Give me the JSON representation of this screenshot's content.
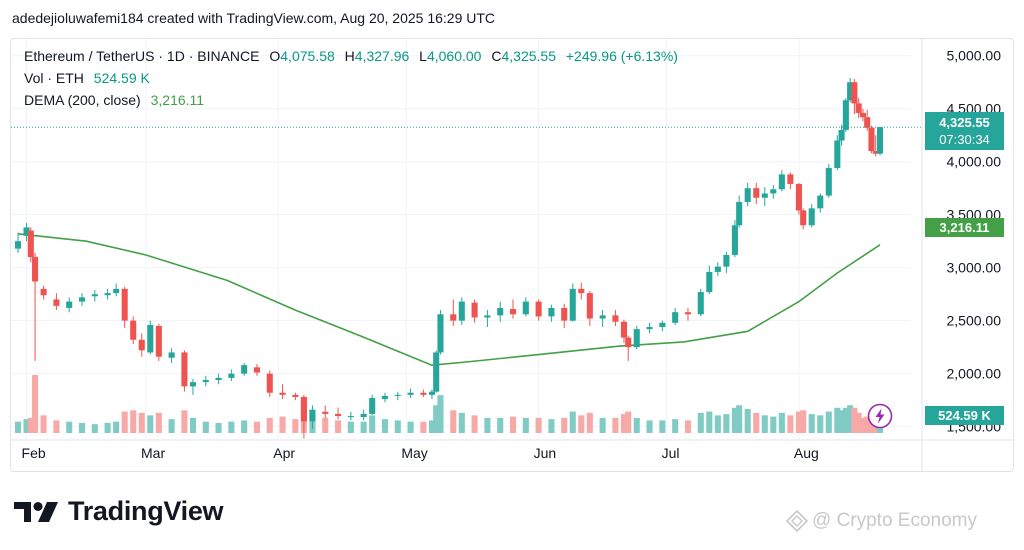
{
  "header": {
    "attribution": "adedejioluwafemi184 created with TradingView.com, Aug 20, 2025 16:29 UTC"
  },
  "legend": {
    "symbol": "Ethereum / TetherUS · 1D · BINANCE",
    "open_label": "O",
    "open": "4,075.58",
    "high_label": "H",
    "high": "4,327.96",
    "low_label": "L",
    "low": "4,060.00",
    "close_label": "C",
    "close": "4,325.55",
    "change": "+249.96 (+6.13%)",
    "vol_label": "Vol · ETH",
    "vol": "524.59 K",
    "ma_label": "DEMA (200, close)",
    "ma": "3,216.11"
  },
  "badges": {
    "price": "4,325.55",
    "countdown": "07:30:34",
    "ma": "3,216.11",
    "volume": "524.59 K"
  },
  "brand": {
    "wordmark": "TradingView",
    "watermark": "@ Crypto Economy"
  },
  "colors": {
    "up": "#26a69a",
    "down": "#ef5350",
    "ma": "#43a047",
    "vol_up": "#80cbc4",
    "vol_down": "#f7a9a7",
    "text": "#131722",
    "grid": "#f0f3fa"
  },
  "icons": {
    "flash": "lightning-icon",
    "logo": "tradingview-logo-icon",
    "watermark": "diamond-icon"
  },
  "chart_data": {
    "type": "candlestick",
    "title": "Ethereum / TetherUS · 1D · BINANCE",
    "y_ticks": [
      1500,
      2000,
      2500,
      3000,
      3500,
      4000,
      4500,
      5000
    ],
    "y_tick_labels": [
      "1,500.00",
      "2,000.00",
      "2,500.00",
      "3,000.00",
      "3,500.00",
      "4,000.00",
      "4,500.00",
      "5,000.00"
    ],
    "ylim": [
      1440,
      5120
    ],
    "x_range": [
      "2025-01-30",
      "2025-08-20"
    ],
    "x_ticks": [
      {
        "date": "2025-02-01",
        "label": "Feb"
      },
      {
        "date": "2025-03-01",
        "label": "Mar"
      },
      {
        "date": "2025-04-01",
        "label": "Apr"
      },
      {
        "date": "2025-05-01",
        "label": "May"
      },
      {
        "date": "2025-06-01",
        "label": "Jun"
      },
      {
        "date": "2025-07-01",
        "label": "Jul"
      },
      {
        "date": "2025-08-01",
        "label": "Aug"
      }
    ],
    "candles": [
      {
        "d": "2025-01-30",
        "o": 3180,
        "h": 3330,
        "l": 3140,
        "c": 3250
      },
      {
        "d": "2025-02-01",
        "o": 3300,
        "h": 3420,
        "l": 3250,
        "c": 3380
      },
      {
        "d": "2025-02-02",
        "o": 3350,
        "h": 3380,
        "l": 3050,
        "c": 3100
      },
      {
        "d": "2025-02-03",
        "o": 3100,
        "h": 3140,
        "l": 2120,
        "c": 2870
      },
      {
        "d": "2025-02-05",
        "o": 2800,
        "h": 2830,
        "l": 2700,
        "c": 2740
      },
      {
        "d": "2025-02-08",
        "o": 2700,
        "h": 2760,
        "l": 2600,
        "c": 2640
      },
      {
        "d": "2025-02-11",
        "o": 2620,
        "h": 2720,
        "l": 2580,
        "c": 2680
      },
      {
        "d": "2025-02-14",
        "o": 2680,
        "h": 2760,
        "l": 2640,
        "c": 2720
      },
      {
        "d": "2025-02-17",
        "o": 2730,
        "h": 2790,
        "l": 2680,
        "c": 2750
      },
      {
        "d": "2025-02-20",
        "o": 2740,
        "h": 2800,
        "l": 2700,
        "c": 2760
      },
      {
        "d": "2025-02-22",
        "o": 2760,
        "h": 2850,
        "l": 2730,
        "c": 2800
      },
      {
        "d": "2025-02-24",
        "o": 2800,
        "h": 2820,
        "l": 2430,
        "c": 2500
      },
      {
        "d": "2025-02-26",
        "o": 2500,
        "h": 2540,
        "l": 2280,
        "c": 2320
      },
      {
        "d": "2025-02-28",
        "o": 2320,
        "h": 2380,
        "l": 2160,
        "c": 2220
      },
      {
        "d": "2025-03-02",
        "o": 2200,
        "h": 2500,
        "l": 2180,
        "c": 2460
      },
      {
        "d": "2025-03-04",
        "o": 2450,
        "h": 2470,
        "l": 2120,
        "c": 2160
      },
      {
        "d": "2025-03-07",
        "o": 2150,
        "h": 2240,
        "l": 2100,
        "c": 2200
      },
      {
        "d": "2025-03-10",
        "o": 2200,
        "h": 2220,
        "l": 1830,
        "c": 1880
      },
      {
        "d": "2025-03-12",
        "o": 1880,
        "h": 1950,
        "l": 1800,
        "c": 1920
      },
      {
        "d": "2025-03-15",
        "o": 1920,
        "h": 1980,
        "l": 1880,
        "c": 1940
      },
      {
        "d": "2025-03-18",
        "o": 1940,
        "h": 2000,
        "l": 1900,
        "c": 1960
      },
      {
        "d": "2025-03-21",
        "o": 1960,
        "h": 2040,
        "l": 1930,
        "c": 2000
      },
      {
        "d": "2025-03-24",
        "o": 2000,
        "h": 2100,
        "l": 1980,
        "c": 2080
      },
      {
        "d": "2025-03-27",
        "o": 2060,
        "h": 2090,
        "l": 1980,
        "c": 2010
      },
      {
        "d": "2025-03-30",
        "o": 2000,
        "h": 2030,
        "l": 1780,
        "c": 1820
      },
      {
        "d": "2025-04-02",
        "o": 1820,
        "h": 1900,
        "l": 1760,
        "c": 1800
      },
      {
        "d": "2025-04-05",
        "o": 1800,
        "h": 1820,
        "l": 1750,
        "c": 1780
      },
      {
        "d": "2025-04-07",
        "o": 1780,
        "h": 1800,
        "l": 1390,
        "c": 1550
      },
      {
        "d": "2025-04-09",
        "o": 1550,
        "h": 1700,
        "l": 1480,
        "c": 1660
      },
      {
        "d": "2025-04-12",
        "o": 1640,
        "h": 1700,
        "l": 1580,
        "c": 1620
      },
      {
        "d": "2025-04-15",
        "o": 1620,
        "h": 1680,
        "l": 1570,
        "c": 1600
      },
      {
        "d": "2025-04-18",
        "o": 1590,
        "h": 1640,
        "l": 1560,
        "c": 1600
      },
      {
        "d": "2025-04-21",
        "o": 1590,
        "h": 1660,
        "l": 1560,
        "c": 1620
      },
      {
        "d": "2025-04-23",
        "o": 1620,
        "h": 1800,
        "l": 1610,
        "c": 1770
      },
      {
        "d": "2025-04-26",
        "o": 1760,
        "h": 1820,
        "l": 1730,
        "c": 1790
      },
      {
        "d": "2025-04-29",
        "o": 1790,
        "h": 1830,
        "l": 1750,
        "c": 1800
      },
      {
        "d": "2025-05-02",
        "o": 1800,
        "h": 1860,
        "l": 1770,
        "c": 1820
      },
      {
        "d": "2025-05-05",
        "o": 1820,
        "h": 1850,
        "l": 1780,
        "c": 1800
      },
      {
        "d": "2025-05-07",
        "o": 1800,
        "h": 1850,
        "l": 1760,
        "c": 1830
      },
      {
        "d": "2025-05-08",
        "o": 1830,
        "h": 2220,
        "l": 1820,
        "c": 2200
      },
      {
        "d": "2025-05-09",
        "o": 2200,
        "h": 2600,
        "l": 2180,
        "c": 2560
      },
      {
        "d": "2025-05-12",
        "o": 2560,
        "h": 2700,
        "l": 2450,
        "c": 2500
      },
      {
        "d": "2025-05-14",
        "o": 2500,
        "h": 2720,
        "l": 2460,
        "c": 2680
      },
      {
        "d": "2025-05-17",
        "o": 2670,
        "h": 2700,
        "l": 2480,
        "c": 2530
      },
      {
        "d": "2025-05-20",
        "o": 2530,
        "h": 2600,
        "l": 2440,
        "c": 2550
      },
      {
        "d": "2025-05-23",
        "o": 2550,
        "h": 2680,
        "l": 2490,
        "c": 2620
      },
      {
        "d": "2025-05-26",
        "o": 2610,
        "h": 2700,
        "l": 2520,
        "c": 2560
      },
      {
        "d": "2025-05-29",
        "o": 2560,
        "h": 2720,
        "l": 2540,
        "c": 2680
      },
      {
        "d": "2025-06-01",
        "o": 2680,
        "h": 2700,
        "l": 2500,
        "c": 2540
      },
      {
        "d": "2025-06-04",
        "o": 2540,
        "h": 2650,
        "l": 2490,
        "c": 2620
      },
      {
        "d": "2025-06-07",
        "o": 2620,
        "h": 2660,
        "l": 2430,
        "c": 2500
      },
      {
        "d": "2025-06-09",
        "o": 2500,
        "h": 2850,
        "l": 2490,
        "c": 2800
      },
      {
        "d": "2025-06-11",
        "o": 2800,
        "h": 2860,
        "l": 2700,
        "c": 2760
      },
      {
        "d": "2025-06-13",
        "o": 2760,
        "h": 2780,
        "l": 2450,
        "c": 2520
      },
      {
        "d": "2025-06-16",
        "o": 2520,
        "h": 2600,
        "l": 2440,
        "c": 2550
      },
      {
        "d": "2025-06-19",
        "o": 2550,
        "h": 2600,
        "l": 2450,
        "c": 2490
      },
      {
        "d": "2025-06-21",
        "o": 2490,
        "h": 2510,
        "l": 2290,
        "c": 2340
      },
      {
        "d": "2025-06-22",
        "o": 2340,
        "h": 2360,
        "l": 2120,
        "c": 2250
      },
      {
        "d": "2025-06-24",
        "o": 2250,
        "h": 2450,
        "l": 2230,
        "c": 2420
      },
      {
        "d": "2025-06-27",
        "o": 2420,
        "h": 2480,
        "l": 2380,
        "c": 2440
      },
      {
        "d": "2025-06-30",
        "o": 2440,
        "h": 2500,
        "l": 2400,
        "c": 2480
      },
      {
        "d": "2025-07-03",
        "o": 2480,
        "h": 2620,
        "l": 2460,
        "c": 2580
      },
      {
        "d": "2025-07-06",
        "o": 2580,
        "h": 2620,
        "l": 2500,
        "c": 2560
      },
      {
        "d": "2025-07-09",
        "o": 2560,
        "h": 2800,
        "l": 2540,
        "c": 2770
      },
      {
        "d": "2025-07-11",
        "o": 2770,
        "h": 3020,
        "l": 2750,
        "c": 2960
      },
      {
        "d": "2025-07-13",
        "o": 2960,
        "h": 3050,
        "l": 2920,
        "c": 3010
      },
      {
        "d": "2025-07-15",
        "o": 3010,
        "h": 3150,
        "l": 2950,
        "c": 3120
      },
      {
        "d": "2025-07-17",
        "o": 3120,
        "h": 3450,
        "l": 3100,
        "c": 3400
      },
      {
        "d": "2025-07-18",
        "o": 3400,
        "h": 3680,
        "l": 3380,
        "c": 3620
      },
      {
        "d": "2025-07-20",
        "o": 3620,
        "h": 3800,
        "l": 3580,
        "c": 3750
      },
      {
        "d": "2025-07-22",
        "o": 3750,
        "h": 3800,
        "l": 3600,
        "c": 3660
      },
      {
        "d": "2025-07-24",
        "o": 3660,
        "h": 3760,
        "l": 3580,
        "c": 3700
      },
      {
        "d": "2025-07-26",
        "o": 3700,
        "h": 3780,
        "l": 3650,
        "c": 3740
      },
      {
        "d": "2025-07-28",
        "o": 3740,
        "h": 3920,
        "l": 3720,
        "c": 3880
      },
      {
        "d": "2025-07-30",
        "o": 3880,
        "h": 3900,
        "l": 3740,
        "c": 3790
      },
      {
        "d": "2025-08-01",
        "o": 3790,
        "h": 3800,
        "l": 3500,
        "c": 3540
      },
      {
        "d": "2025-08-02",
        "o": 3540,
        "h": 3560,
        "l": 3360,
        "c": 3400
      },
      {
        "d": "2025-08-04",
        "o": 3400,
        "h": 3600,
        "l": 3380,
        "c": 3560
      },
      {
        "d": "2025-08-06",
        "o": 3560,
        "h": 3700,
        "l": 3520,
        "c": 3680
      },
      {
        "d": "2025-08-08",
        "o": 3680,
        "h": 3980,
        "l": 3660,
        "c": 3940
      },
      {
        "d": "2025-08-10",
        "o": 3940,
        "h": 4250,
        "l": 3920,
        "c": 4200
      },
      {
        "d": "2025-08-11",
        "o": 4200,
        "h": 4350,
        "l": 4150,
        "c": 4300
      },
      {
        "d": "2025-08-12",
        "o": 4300,
        "h": 4600,
        "l": 4280,
        "c": 4580
      },
      {
        "d": "2025-08-13",
        "o": 4580,
        "h": 4790,
        "l": 4560,
        "c": 4750
      },
      {
        "d": "2025-08-14",
        "o": 4750,
        "h": 4780,
        "l": 4450,
        "c": 4550
      },
      {
        "d": "2025-08-15",
        "o": 4550,
        "h": 4600,
        "l": 4410,
        "c": 4460
      },
      {
        "d": "2025-08-16",
        "o": 4460,
        "h": 4500,
        "l": 4380,
        "c": 4420
      },
      {
        "d": "2025-08-17",
        "o": 4420,
        "h": 4490,
        "l": 4290,
        "c": 4320
      },
      {
        "d": "2025-08-18",
        "o": 4320,
        "h": 4340,
        "l": 4080,
        "c": 4100
      },
      {
        "d": "2025-08-19",
        "o": 4100,
        "h": 4250,
        "l": 4050,
        "c": 4075
      },
      {
        "d": "2025-08-20",
        "o": 4075.58,
        "h": 4327.96,
        "l": 4060,
        "c": 4325.55
      }
    ],
    "volume": [
      0.45,
      0.55,
      0.6,
      2.3,
      0.7,
      0.5,
      0.45,
      0.4,
      0.35,
      0.4,
      0.45,
      0.85,
      0.9,
      0.8,
      0.7,
      0.8,
      0.55,
      0.9,
      0.6,
      0.45,
      0.4,
      0.45,
      0.5,
      0.45,
      0.6,
      0.65,
      0.55,
      1.4,
      0.9,
      0.6,
      0.5,
      0.45,
      0.45,
      0.7,
      0.55,
      0.5,
      0.45,
      0.45,
      0.5,
      1.1,
      1.5,
      0.9,
      0.8,
      0.7,
      0.6,
      0.6,
      0.65,
      0.6,
      0.6,
      0.55,
      0.6,
      0.85,
      0.7,
      0.8,
      0.6,
      0.6,
      0.75,
      0.85,
      0.6,
      0.5,
      0.5,
      0.55,
      0.5,
      0.8,
      0.85,
      0.7,
      0.75,
      1.0,
      1.1,
      0.95,
      0.8,
      0.7,
      0.65,
      0.8,
      0.7,
      0.85,
      0.9,
      0.75,
      0.7,
      0.85,
      1.0,
      0.9,
      1.0,
      1.1,
      1.0,
      0.8,
      0.6,
      0.65,
      0.8,
      0.65,
      0.52
    ],
    "ma_series": {
      "name": "DEMA (200, close)",
      "points": [
        {
          "d": "2025-01-30",
          "v": 3320
        },
        {
          "d": "2025-02-15",
          "v": 3250
        },
        {
          "d": "2025-03-01",
          "v": 3120
        },
        {
          "d": "2025-03-20",
          "v": 2880
        },
        {
          "d": "2025-04-05",
          "v": 2600
        },
        {
          "d": "2025-04-20",
          "v": 2360
        },
        {
          "d": "2025-05-07",
          "v": 2080
        },
        {
          "d": "2025-05-15",
          "v": 2110
        },
        {
          "d": "2025-06-01",
          "v": 2180
        },
        {
          "d": "2025-06-20",
          "v": 2260
        },
        {
          "d": "2025-07-05",
          "v": 2300
        },
        {
          "d": "2025-07-20",
          "v": 2400
        },
        {
          "d": "2025-08-01",
          "v": 2680
        },
        {
          "d": "2025-08-10",
          "v": 2950
        },
        {
          "d": "2025-08-20",
          "v": 3216.11
        }
      ]
    }
  }
}
